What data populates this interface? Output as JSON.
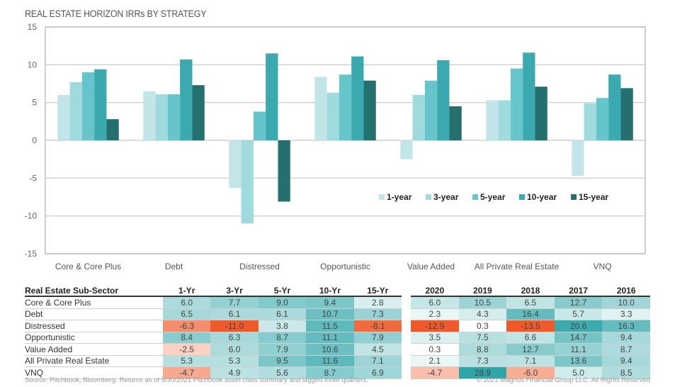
{
  "chart_data": {
    "type": "bar",
    "title": "REAL ESTATE HORIZON IRRs BY STRATEGY",
    "xlabel": "",
    "ylabel": "",
    "ylim": [
      -15,
      15
    ],
    "yticks": [
      15,
      10,
      5,
      0,
      -5,
      -10,
      -15
    ],
    "grid": true,
    "legend_position": "center-right",
    "categories": [
      "Core & Core Plus",
      "Debt",
      "Distressed",
      "Opportunistic",
      "Value Added",
      "All Private Real Estate",
      "VNQ"
    ],
    "series": [
      {
        "name": "1-year",
        "color": "#c2e6e7",
        "values": [
          6.0,
          6.5,
          -6.3,
          8.4,
          -2.5,
          5.3,
          -4.7
        ]
      },
      {
        "name": "3-year",
        "color": "#9fdadc",
        "values": [
          7.7,
          6.1,
          -11.0,
          6.3,
          6.0,
          5.3,
          4.9
        ]
      },
      {
        "name": "5-year",
        "color": "#66c4cb",
        "values": [
          9.0,
          6.1,
          3.8,
          8.7,
          7.9,
          9.5,
          5.6
        ]
      },
      {
        "name": "10-year",
        "color": "#3aa9b0",
        "values": [
          9.4,
          10.7,
          11.5,
          11.1,
          10.6,
          11.6,
          8.7
        ]
      },
      {
        "name": "15-year",
        "color": "#24706f",
        "values": [
          2.8,
          7.3,
          -8.1,
          7.9,
          4.5,
          7.1,
          6.9
        ]
      }
    ]
  },
  "table_left": {
    "header": [
      "Real Estate Sub-Sector",
      "1-Yr",
      "3-Yr",
      "5-Yr",
      "10-Yr",
      "15-Yr"
    ],
    "rows": [
      [
        "Core & Core Plus",
        "6.0",
        "7.7",
        "9.0",
        "9.4",
        "2.8"
      ],
      [
        "Debt",
        "6.5",
        "6.1",
        "6.1",
        "10.7",
        "7.3"
      ],
      [
        "Distressed",
        "-6.3",
        "-11.0",
        "3.8",
        "11.5",
        "-8.1"
      ],
      [
        "Opportunistic",
        "8.4",
        "6.3",
        "8.7",
        "11.1",
        "7.9"
      ],
      [
        "Value Added",
        "-2.5",
        "6.0",
        "7.9",
        "10.6",
        "4.5"
      ],
      [
        "All Private Real Estate",
        "5.3",
        "5.3",
        "9.5",
        "11.6",
        "7.1"
      ],
      [
        "VNQ",
        "-4.7",
        "4.9",
        "5.6",
        "8.7",
        "6.9"
      ]
    ]
  },
  "table_right": {
    "header": [
      "2020",
      "2019",
      "2018",
      "2017",
      "2016"
    ],
    "rows": [
      [
        "6.0",
        "10.5",
        "6.5",
        "12.7",
        "10.0"
      ],
      [
        "2.3",
        "4.3",
        "16.4",
        "5.7",
        "3.3"
      ],
      [
        "-12.9",
        "0.3",
        "-13.5",
        "20.6",
        "16.3"
      ],
      [
        "3.5",
        "7.5",
        "6.6",
        "14.7",
        "9.4"
      ],
      [
        "0.3",
        "8.8",
        "12.7",
        "11.1",
        "8.7"
      ],
      [
        "2.1",
        "7.3",
        "7.1",
        "13.6",
        "9.4"
      ],
      [
        "-4.7",
        "28.9",
        "-6.0",
        "5.0",
        "8.5"
      ]
    ]
  },
  "heatmap_colors": {
    "negative": "#f05a2a",
    "neutral": "#ffffff",
    "positive": "#2fa5a8"
  },
  "footer": {
    "source": "Source: Pitchbook, Bloomberg.  Returns as of 9/30/2021 Pitchbook asset class summary and lagged three quarters.",
    "copyright": "© 2021 Magnus Financial Group LLC. All Rights Reserved"
  }
}
